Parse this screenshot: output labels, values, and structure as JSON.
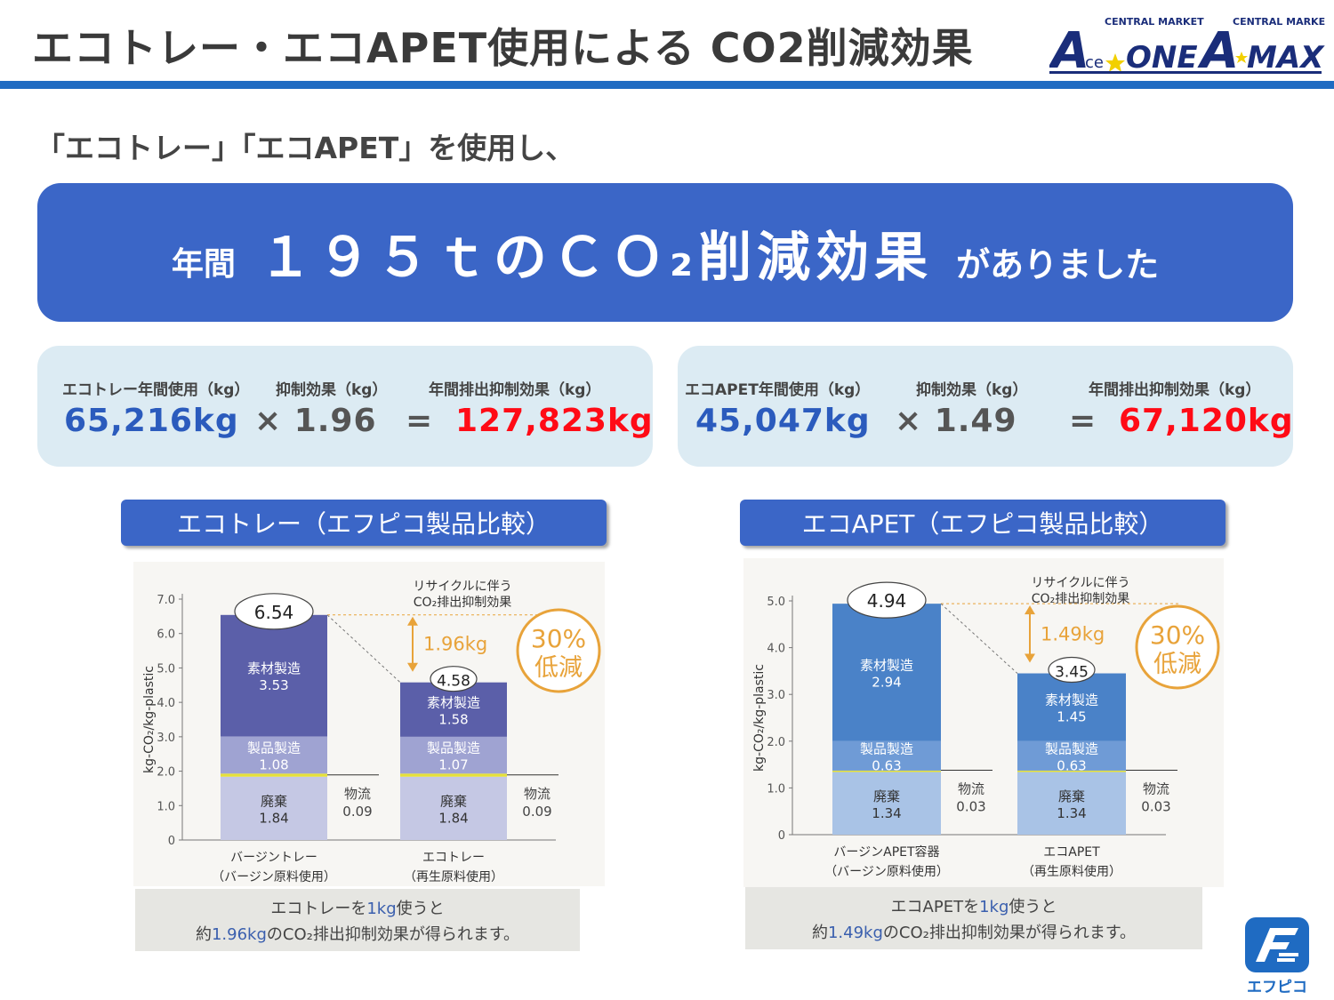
{
  "header": {
    "title": "エコトレー・エコAPET使用による CO2削減効果",
    "logo_left_top": "CENTRAL MARKET",
    "logo_left_word": "ONE",
    "logo_left_sub": "ce",
    "logo_right_top": "CENTRAL MARKET",
    "logo_right_word": "MAX"
  },
  "subtitle": "「エコトレー」「エコAPET」を使用し、",
  "banner": {
    "prefix": "年間",
    "main": "１９５ｔのＣＯ₂削減効果",
    "suffix": "がありました"
  },
  "calc_tray": {
    "label_usage": "エコトレー年間使用（kg）",
    "label_effect": "抑制効果（kg）",
    "label_total": "年間排出抑制効果（kg）",
    "usage": "65,216kg",
    "factor": "× 1.96",
    "equals": "=",
    "total": "127,823kg"
  },
  "calc_apet": {
    "label_usage": "エコAPET年間使用（kg）",
    "label_effect": "抑制効果（kg）",
    "label_total": "年間排出抑制効果（kg）",
    "usage": "45,047kg",
    "factor": "× 1.49",
    "equals": "=",
    "total": "67,120kg"
  },
  "pills": {
    "tray": "エコトレー（エフピコ製品比較）",
    "apet": "エコAPET（エフピコ製品比較）"
  },
  "colors": {
    "accent_blue": "#3b66c7",
    "rule_blue": "#1f6bc2",
    "red": "#ff0b16",
    "orange": "#e8a33a"
  },
  "chart_data": [
    {
      "type": "bar",
      "stacked": true,
      "ylabel": "kg-CO₂/kg-plastic",
      "ylim": [
        0,
        7.0
      ],
      "yticks": [
        "0",
        "1.0",
        "2.0",
        "3.0",
        "4.0",
        "5.0",
        "6.0",
        "7.0"
      ],
      "categories": [
        [
          "バージントレー",
          "（バージン原料使用）"
        ],
        [
          "エコトレー",
          "（再生原料使用）"
        ]
      ],
      "series": [
        {
          "name": "廃棄",
          "values": [
            1.84,
            1.84
          ]
        },
        {
          "name": "物流",
          "values": [
            0.09,
            0.09
          ]
        },
        {
          "name": "製品製造",
          "values": [
            1.08,
            1.07
          ]
        },
        {
          "name": "素材製造",
          "values": [
            3.53,
            1.58
          ]
        }
      ],
      "totals": [
        "6.54",
        "4.58"
      ],
      "value_labels": {
        "haiki": [
          "1.84",
          "1.84"
        ],
        "butsuryu": [
          "0.09",
          "0.09"
        ],
        "seihin": [
          "1.08",
          "1.07"
        ],
        "sozai": [
          "3.53",
          "1.58"
        ]
      },
      "annotation_top": [
        "リサイクルに伴う",
        "CO₂排出抑制効果"
      ],
      "reduction": "1.96kg",
      "badge": [
        "30%",
        "低減"
      ],
      "note_line1": [
        "エコトレーを",
        "1kg",
        "使うと"
      ],
      "note_line2": [
        "約",
        "1.96kg",
        "のCO₂排出抑制効果が得られます。"
      ]
    },
    {
      "type": "bar",
      "stacked": true,
      "ylabel": "kg-CO₂/kg-plastic",
      "ylim": [
        0,
        5.0
      ],
      "yticks": [
        "0",
        "1.0",
        "2.0",
        "3.0",
        "4.0",
        "5.0"
      ],
      "categories": [
        [
          "バージンAPET容器",
          "（バージン原料使用）"
        ],
        [
          "エコAPET",
          "（再生原料使用）"
        ]
      ],
      "series": [
        {
          "name": "廃棄",
          "values": [
            1.34,
            1.34
          ]
        },
        {
          "name": "物流",
          "values": [
            0.03,
            0.03
          ]
        },
        {
          "name": "製品製造",
          "values": [
            0.63,
            0.63
          ]
        },
        {
          "name": "素材製造",
          "values": [
            2.94,
            1.45
          ]
        }
      ],
      "totals": [
        "4.94",
        "3.45"
      ],
      "value_labels": {
        "haiki": [
          "1.34",
          "1.34"
        ],
        "butsuryu": [
          "0.03",
          "0.03"
        ],
        "seihin": [
          "0.63",
          "0.63"
        ],
        "sozai": [
          "2.94",
          "1.45"
        ]
      },
      "annotation_top": [
        "リサイクルに伴う",
        "CO₂排出抑制効果"
      ],
      "reduction": "1.49kg",
      "badge": [
        "30%",
        "低減"
      ],
      "note_line1": [
        "エコAPETを",
        "1kg",
        "使うと"
      ],
      "note_line2": [
        "約",
        "1.49kg",
        "のCO₂排出抑制効果が得られます。"
      ]
    }
  ],
  "footer_logo": "エフピコ"
}
